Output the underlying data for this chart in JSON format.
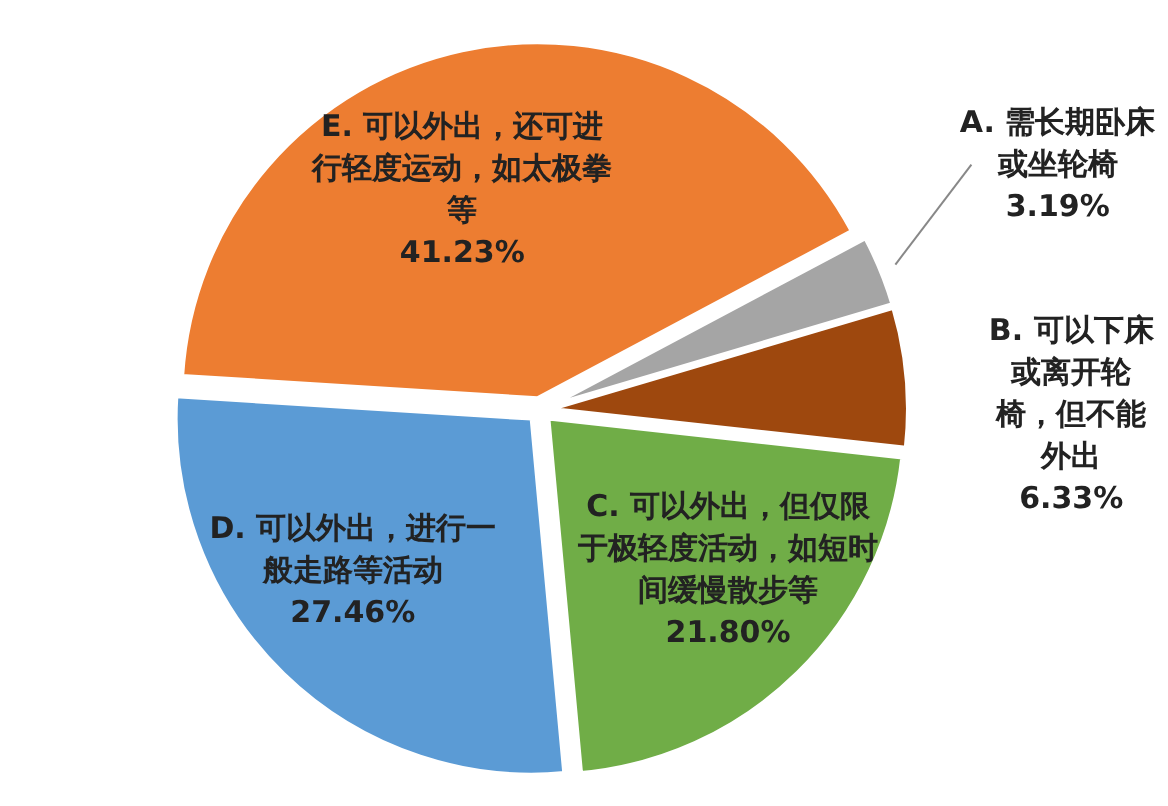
{
  "chart_data": {
    "type": "pie",
    "categories": [
      "A. 需长期卧床或坐轮椅",
      "B. 可以下床或离开轮椅，但不能外出",
      "C. 可以外出，但仅限于极轻度活动，如短时间缓慢散步等",
      "D. 可以外出，进行一般走路等活动",
      "E. 可以外出，还可进行轻度运动，如太极拳等"
    ],
    "values": [
      3.19,
      6.33,
      21.8,
      27.46,
      41.23
    ],
    "value_labels": [
      "3.19%",
      "6.33%",
      "21.80%",
      "27.46%",
      "41.23%"
    ],
    "colors": [
      "#a5a5a5",
      "#9e480e",
      "#70ad47",
      "#5b9bd5",
      "#ed7d31"
    ]
  }
}
